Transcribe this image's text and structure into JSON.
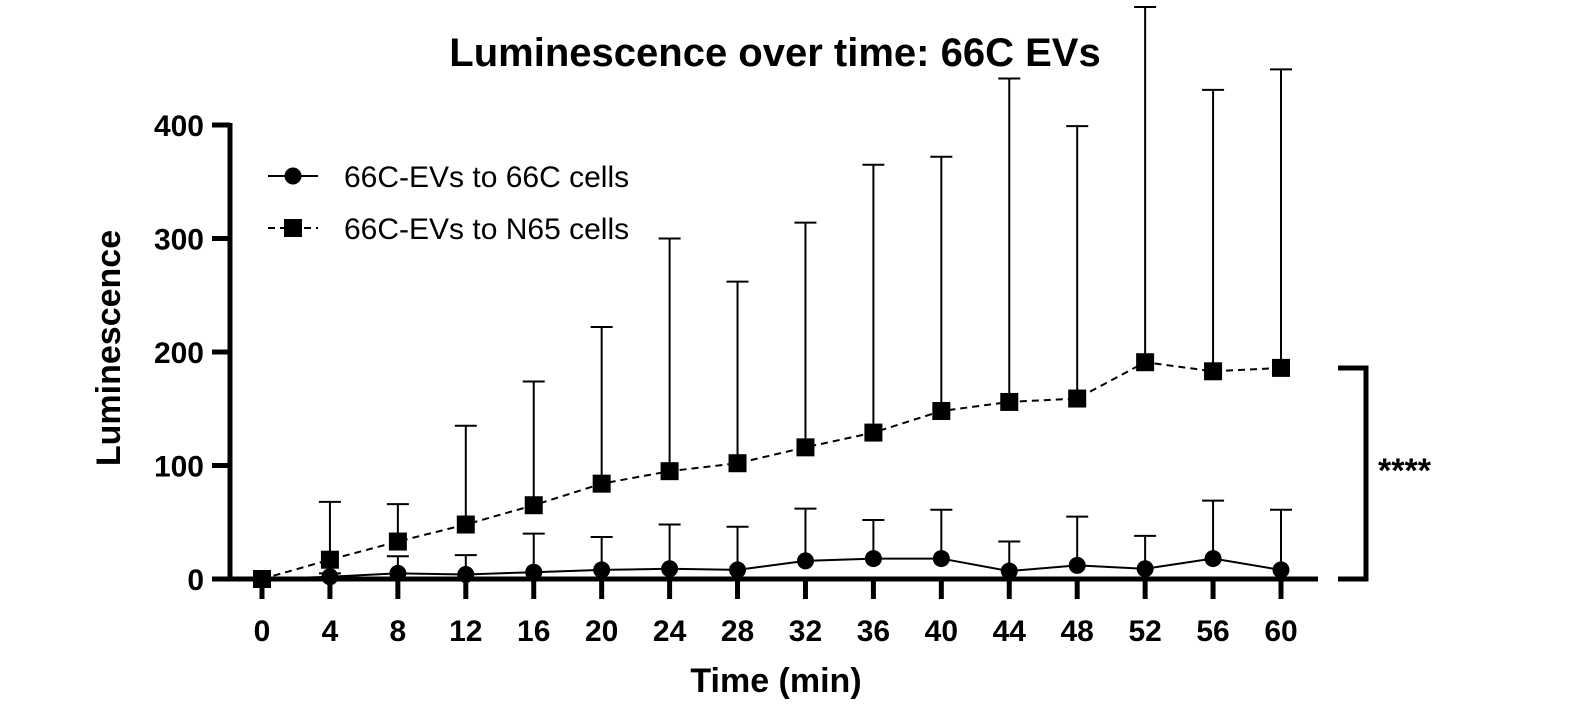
{
  "chart_data": {
    "type": "line",
    "title": "Luminescence over time: 66C EVs",
    "xlabel": "Time (min)",
    "ylabel": "Luminescence",
    "x": [
      0,
      4,
      8,
      12,
      16,
      20,
      24,
      28,
      32,
      36,
      40,
      44,
      48,
      52,
      56,
      60
    ],
    "x_ticks": [
      "0",
      "4",
      "8",
      "12",
      "16",
      "20",
      "24",
      "28",
      "32",
      "36",
      "40",
      "44",
      "48",
      "52",
      "56",
      "60"
    ],
    "y_ticks": [
      "0",
      "100",
      "200",
      "300",
      "400"
    ],
    "ylim": [
      0,
      400
    ],
    "grid": false,
    "legend_position": "top-left",
    "series": [
      {
        "name": "66C-EVs to 66C cells",
        "marker": "circle",
        "line_style": "solid",
        "values": [
          0,
          2,
          5,
          4,
          6,
          8,
          9,
          8,
          16,
          18,
          18,
          7,
          12,
          9,
          18,
          8
        ],
        "error_upper": [
          0,
          3,
          15,
          17,
          34,
          29,
          39,
          38,
          46,
          34,
          43,
          26,
          43,
          29,
          51,
          53
        ]
      },
      {
        "name": "66C-EVs to N65 cells",
        "marker": "square",
        "line_style": "dashed",
        "values": [
          0,
          17,
          33,
          48,
          65,
          84,
          95,
          102,
          116,
          129,
          148,
          156,
          159,
          191,
          183,
          186
        ],
        "error_upper": [
          0,
          51,
          33,
          87,
          109,
          138,
          205,
          160,
          198,
          236,
          224,
          285,
          240,
          313,
          248,
          263
        ]
      }
    ],
    "significance": "****"
  }
}
